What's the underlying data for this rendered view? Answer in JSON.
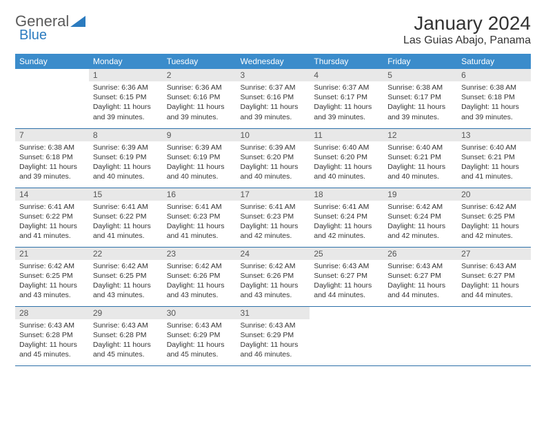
{
  "logo": {
    "text1": "General",
    "text2": "Blue"
  },
  "title": "January 2024",
  "location": "Las Guias Abajo, Panama",
  "colors": {
    "header_bg": "#3b8ccb",
    "header_text": "#ffffff",
    "daynum_bg": "#e8e8e8",
    "row_border": "#2b6fa8",
    "body_text": "#333333",
    "logo_gray": "#5a5a5a",
    "logo_blue": "#2b7bbf"
  },
  "weekdays": [
    "Sunday",
    "Monday",
    "Tuesday",
    "Wednesday",
    "Thursday",
    "Friday",
    "Saturday"
  ],
  "weeks": [
    [
      {
        "n": "",
        "sr": "",
        "ss": "",
        "dl": ""
      },
      {
        "n": "1",
        "sr": "Sunrise: 6:36 AM",
        "ss": "Sunset: 6:15 PM",
        "dl": "Daylight: 11 hours and 39 minutes."
      },
      {
        "n": "2",
        "sr": "Sunrise: 6:36 AM",
        "ss": "Sunset: 6:16 PM",
        "dl": "Daylight: 11 hours and 39 minutes."
      },
      {
        "n": "3",
        "sr": "Sunrise: 6:37 AM",
        "ss": "Sunset: 6:16 PM",
        "dl": "Daylight: 11 hours and 39 minutes."
      },
      {
        "n": "4",
        "sr": "Sunrise: 6:37 AM",
        "ss": "Sunset: 6:17 PM",
        "dl": "Daylight: 11 hours and 39 minutes."
      },
      {
        "n": "5",
        "sr": "Sunrise: 6:38 AM",
        "ss": "Sunset: 6:17 PM",
        "dl": "Daylight: 11 hours and 39 minutes."
      },
      {
        "n": "6",
        "sr": "Sunrise: 6:38 AM",
        "ss": "Sunset: 6:18 PM",
        "dl": "Daylight: 11 hours and 39 minutes."
      }
    ],
    [
      {
        "n": "7",
        "sr": "Sunrise: 6:38 AM",
        "ss": "Sunset: 6:18 PM",
        "dl": "Daylight: 11 hours and 39 minutes."
      },
      {
        "n": "8",
        "sr": "Sunrise: 6:39 AM",
        "ss": "Sunset: 6:19 PM",
        "dl": "Daylight: 11 hours and 40 minutes."
      },
      {
        "n": "9",
        "sr": "Sunrise: 6:39 AM",
        "ss": "Sunset: 6:19 PM",
        "dl": "Daylight: 11 hours and 40 minutes."
      },
      {
        "n": "10",
        "sr": "Sunrise: 6:39 AM",
        "ss": "Sunset: 6:20 PM",
        "dl": "Daylight: 11 hours and 40 minutes."
      },
      {
        "n": "11",
        "sr": "Sunrise: 6:40 AM",
        "ss": "Sunset: 6:20 PM",
        "dl": "Daylight: 11 hours and 40 minutes."
      },
      {
        "n": "12",
        "sr": "Sunrise: 6:40 AM",
        "ss": "Sunset: 6:21 PM",
        "dl": "Daylight: 11 hours and 40 minutes."
      },
      {
        "n": "13",
        "sr": "Sunrise: 6:40 AM",
        "ss": "Sunset: 6:21 PM",
        "dl": "Daylight: 11 hours and 41 minutes."
      }
    ],
    [
      {
        "n": "14",
        "sr": "Sunrise: 6:41 AM",
        "ss": "Sunset: 6:22 PM",
        "dl": "Daylight: 11 hours and 41 minutes."
      },
      {
        "n": "15",
        "sr": "Sunrise: 6:41 AM",
        "ss": "Sunset: 6:22 PM",
        "dl": "Daylight: 11 hours and 41 minutes."
      },
      {
        "n": "16",
        "sr": "Sunrise: 6:41 AM",
        "ss": "Sunset: 6:23 PM",
        "dl": "Daylight: 11 hours and 41 minutes."
      },
      {
        "n": "17",
        "sr": "Sunrise: 6:41 AM",
        "ss": "Sunset: 6:23 PM",
        "dl": "Daylight: 11 hours and 42 minutes."
      },
      {
        "n": "18",
        "sr": "Sunrise: 6:41 AM",
        "ss": "Sunset: 6:24 PM",
        "dl": "Daylight: 11 hours and 42 minutes."
      },
      {
        "n": "19",
        "sr": "Sunrise: 6:42 AM",
        "ss": "Sunset: 6:24 PM",
        "dl": "Daylight: 11 hours and 42 minutes."
      },
      {
        "n": "20",
        "sr": "Sunrise: 6:42 AM",
        "ss": "Sunset: 6:25 PM",
        "dl": "Daylight: 11 hours and 42 minutes."
      }
    ],
    [
      {
        "n": "21",
        "sr": "Sunrise: 6:42 AM",
        "ss": "Sunset: 6:25 PM",
        "dl": "Daylight: 11 hours and 43 minutes."
      },
      {
        "n": "22",
        "sr": "Sunrise: 6:42 AM",
        "ss": "Sunset: 6:25 PM",
        "dl": "Daylight: 11 hours and 43 minutes."
      },
      {
        "n": "23",
        "sr": "Sunrise: 6:42 AM",
        "ss": "Sunset: 6:26 PM",
        "dl": "Daylight: 11 hours and 43 minutes."
      },
      {
        "n": "24",
        "sr": "Sunrise: 6:42 AM",
        "ss": "Sunset: 6:26 PM",
        "dl": "Daylight: 11 hours and 43 minutes."
      },
      {
        "n": "25",
        "sr": "Sunrise: 6:43 AM",
        "ss": "Sunset: 6:27 PM",
        "dl": "Daylight: 11 hours and 44 minutes."
      },
      {
        "n": "26",
        "sr": "Sunrise: 6:43 AM",
        "ss": "Sunset: 6:27 PM",
        "dl": "Daylight: 11 hours and 44 minutes."
      },
      {
        "n": "27",
        "sr": "Sunrise: 6:43 AM",
        "ss": "Sunset: 6:27 PM",
        "dl": "Daylight: 11 hours and 44 minutes."
      }
    ],
    [
      {
        "n": "28",
        "sr": "Sunrise: 6:43 AM",
        "ss": "Sunset: 6:28 PM",
        "dl": "Daylight: 11 hours and 45 minutes."
      },
      {
        "n": "29",
        "sr": "Sunrise: 6:43 AM",
        "ss": "Sunset: 6:28 PM",
        "dl": "Daylight: 11 hours and 45 minutes."
      },
      {
        "n": "30",
        "sr": "Sunrise: 6:43 AM",
        "ss": "Sunset: 6:29 PM",
        "dl": "Daylight: 11 hours and 45 minutes."
      },
      {
        "n": "31",
        "sr": "Sunrise: 6:43 AM",
        "ss": "Sunset: 6:29 PM",
        "dl": "Daylight: 11 hours and 46 minutes."
      },
      {
        "n": "",
        "sr": "",
        "ss": "",
        "dl": ""
      },
      {
        "n": "",
        "sr": "",
        "ss": "",
        "dl": ""
      },
      {
        "n": "",
        "sr": "",
        "ss": "",
        "dl": ""
      }
    ]
  ]
}
